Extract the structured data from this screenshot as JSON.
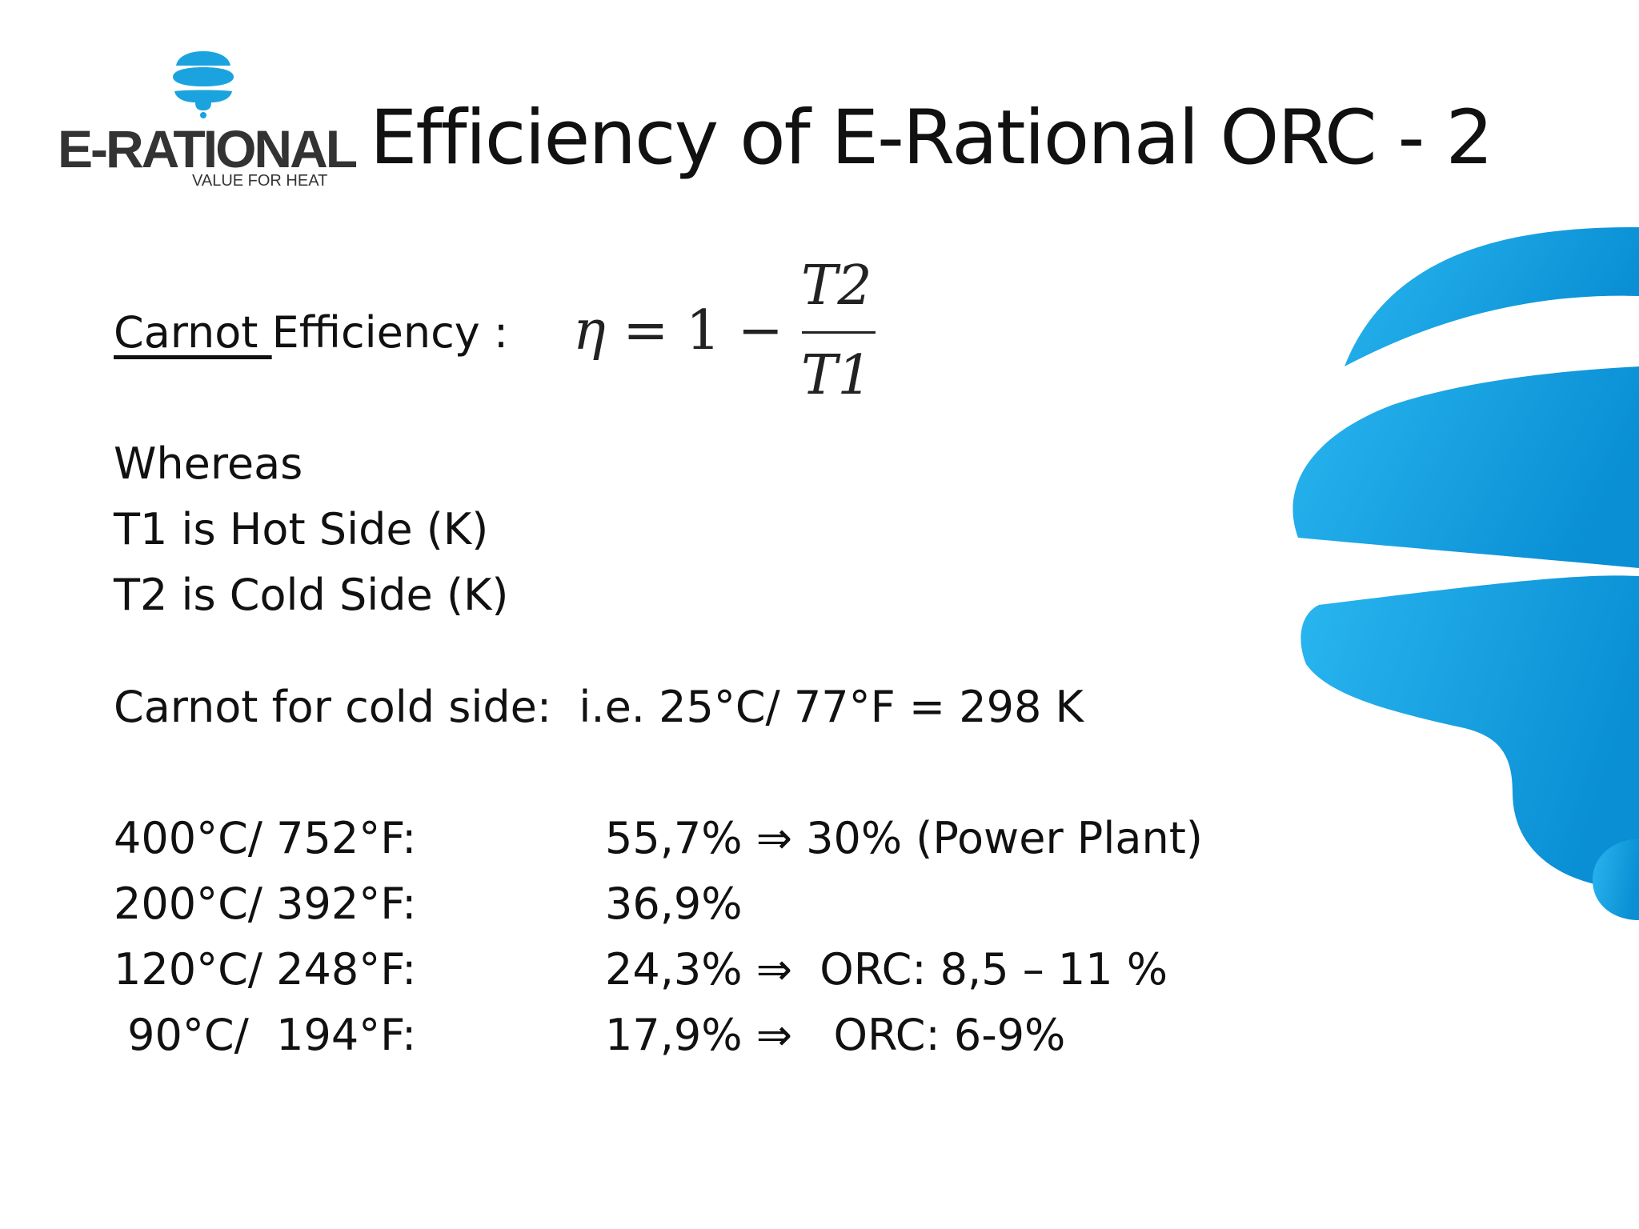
{
  "brand": {
    "name": "E-RATIONAL",
    "tagline": "VALUE FOR HEAT",
    "color": "#0ea5e0"
  },
  "slide": {
    "title": "Efficiency of E-Rational ORC - 2",
    "carnot_label_underlined": "Carnot ",
    "carnot_label_rest": "Efficiency :",
    "formula": {
      "eta": "η",
      "lhs": " = 1 − ",
      "numerator": "T2",
      "denominator": "T1"
    },
    "whereas": "Whereas",
    "t1_definition": "T1 is Hot Side (K)",
    "t2_definition": "T2 is Cold Side (K)",
    "cold_side_line": "Carnot for cold side:  i.e. 25°C/ 77°F = 298 K",
    "rows": [
      {
        "temp": "400°C/ 752°F:",
        "value": "55,7% ⇒ 30% (Power Plant)"
      },
      {
        "temp": "200°C/ 392°F:",
        "value": "36,9%"
      },
      {
        "temp": "120°C/ 248°F:",
        "value": "24,3% ⇒  ORC: 8,5 – 11 %"
      },
      {
        "temp": " 90°C/  194°F:",
        "value": "17,9% ⇒   ORC: 6-9%"
      }
    ]
  }
}
